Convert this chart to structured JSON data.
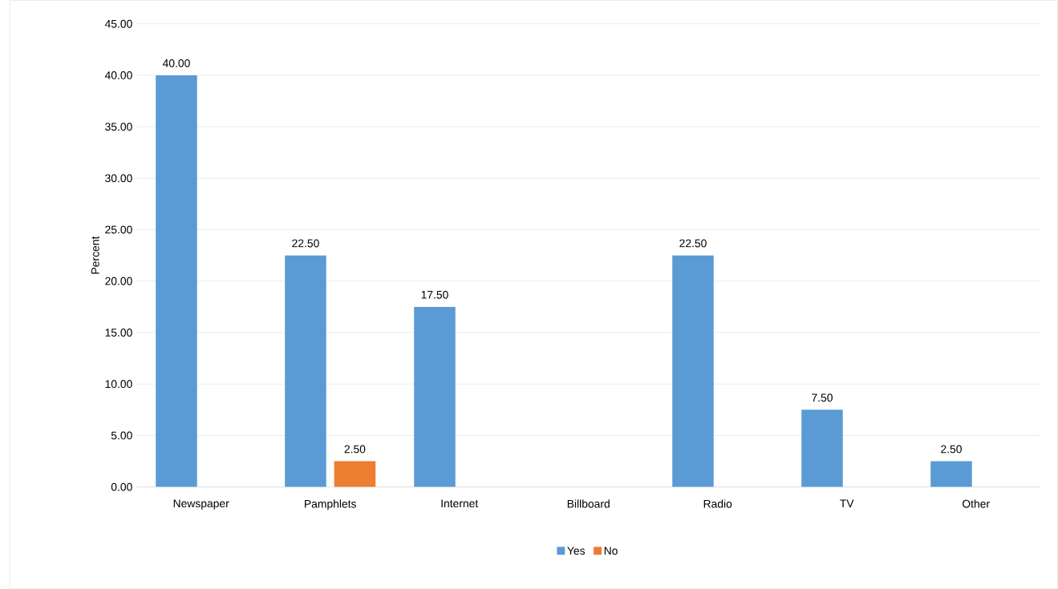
{
  "chart_data": {
    "type": "bar",
    "ylabel": "Percent",
    "categories": [
      "Newspaper",
      "Pamphlets",
      "Internet",
      "Billboard",
      "Radio",
      "TV",
      "Other"
    ],
    "series": [
      {
        "name": "Yes",
        "color": "#5b9bd5",
        "values": [
          40,
          22.5,
          17.5,
          null,
          22.5,
          7.5,
          2.5
        ],
        "value_labels": [
          "40.00",
          "22.50",
          "17.50",
          null,
          "22.50",
          "7.50",
          "2.50"
        ]
      },
      {
        "name": "No",
        "color": "#ed7d31",
        "values": [
          null,
          2.5,
          null,
          null,
          null,
          null,
          null
        ],
        "value_labels": [
          null,
          "2.50",
          null,
          null,
          null,
          null,
          null
        ]
      }
    ],
    "ylim": [
      0,
      45
    ],
    "yticks": [
      {
        "value": 0,
        "label": "0.00"
      },
      {
        "value": 5,
        "label": "5.00"
      },
      {
        "value": 10,
        "label": "10.00"
      },
      {
        "value": 15,
        "label": "15.00"
      },
      {
        "value": 20,
        "label": "20.00"
      },
      {
        "value": 25,
        "label": "25.00"
      },
      {
        "value": 30,
        "label": "30.00"
      },
      {
        "value": 35,
        "label": "35.00"
      },
      {
        "value": 40,
        "label": "40.00"
      },
      {
        "value": 45,
        "label": "45.00"
      }
    ],
    "grid": "y",
    "legend": "bottom"
  }
}
